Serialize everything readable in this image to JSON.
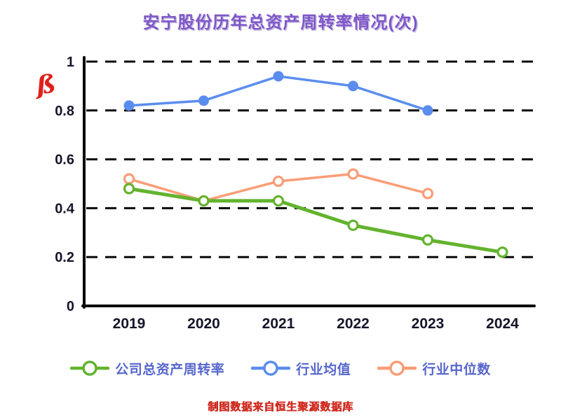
{
  "annotation": {
    "mark": "ß"
  },
  "footer_note": "制图数据来自恒生聚源数据库",
  "colors": {
    "title": "#7e57c8",
    "axis": "#0a0a0a",
    "grid": "#0a0a0a",
    "legend_text": "#5566cc",
    "footer": "#d93025",
    "annotation": "#e0201c",
    "company": "#63b32e",
    "industry_mean": "#5b8def",
    "industry_median": "#f99d77"
  },
  "chart_data": {
    "type": "line",
    "title": "安宁股份历年总资产周转率情况(次)",
    "x_tick_labels": [
      "2019",
      "2020",
      "2021",
      "2022",
      "2023",
      "2024"
    ],
    "y_tick_labels": [
      "0",
      "0.2",
      "0.4",
      "0.6",
      "0.8",
      "1"
    ],
    "y_ticks": [
      0,
      0.2,
      0.4,
      0.6,
      0.8,
      1
    ],
    "ylim": [
      0,
      1
    ],
    "grid": "horizontal-dashed",
    "legend_position": "bottom",
    "series": [
      {
        "name": "公司总资产周转率",
        "color": "#63b32e",
        "marker": "open-circle",
        "line_width": 5,
        "values": [
          0.48,
          0.43,
          0.43,
          0.33,
          0.27,
          0.22
        ]
      },
      {
        "name": "行业均值",
        "color": "#5b8def",
        "marker": "filled-circle",
        "line_width": 3.5,
        "values": [
          0.82,
          0.84,
          0.94,
          0.9,
          0.8,
          null
        ]
      },
      {
        "name": "行业中位数",
        "color": "#f99d77",
        "marker": "open-circle",
        "line_width": 3.5,
        "values": [
          0.52,
          0.43,
          0.51,
          0.54,
          0.46,
          null
        ]
      }
    ]
  }
}
